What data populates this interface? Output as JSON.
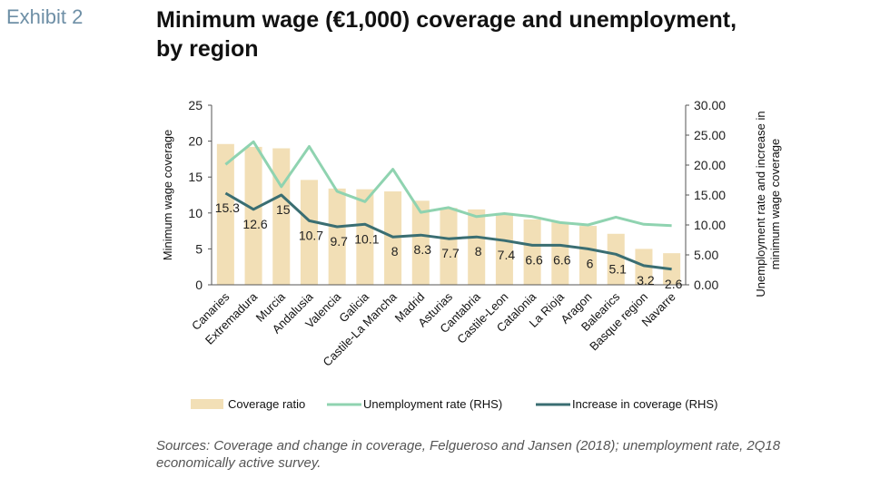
{
  "header": {
    "exhibit": "Exhibit 2",
    "title_line1": "Minimum wage (€1,000) coverage and unemployment,",
    "title_line2": "by region"
  },
  "source": {
    "line1": "Sources: Coverage and change in coverage, Felgueroso and Jansen (2018); unemployment rate, 2Q18",
    "line2": "economically active survey."
  },
  "chart_data": {
    "type": "bar",
    "categories": [
      "Canaries",
      "Extremadura",
      "Murcia",
      "Andalusia",
      "Valencia",
      "Galicia",
      "Castile-La Mancha",
      "Madrid",
      "Asturias",
      "Cantabria",
      "Castile-Leon",
      "Catalonia",
      "La Rioja",
      "Aragon",
      "Balearics",
      "Basque region",
      "Navarre"
    ],
    "ylabel": "Minimum wage coverage",
    "y2label_line1": "Unemployment rate and increase in",
    "y2label_line2": "minimum wage coverage",
    "ylim": [
      0,
      25
    ],
    "y2lim": [
      0,
      30
    ],
    "yticks": [
      "0",
      "5",
      "10",
      "15",
      "20",
      "25"
    ],
    "y2ticks": [
      "0.00",
      "5.00",
      "10.00",
      "15.00",
      "20.00",
      "25.00",
      "30.00"
    ],
    "series": [
      {
        "name": "Coverage ratio",
        "kind": "bar",
        "axis": "left",
        "color": "#f2dfb6",
        "values": [
          19.6,
          19.2,
          19.0,
          14.6,
          13.4,
          13.3,
          13.0,
          11.7,
          10.7,
          10.5,
          10.0,
          9.1,
          8.7,
          8.2,
          7.1,
          5.0,
          4.4
        ]
      },
      {
        "name": "Unemployment rate (RHS)",
        "kind": "line",
        "axis": "right",
        "color": "#8fd3b0",
        "values": [
          20.1,
          23.9,
          16.4,
          23.1,
          15.6,
          13.9,
          19.3,
          12.1,
          12.9,
          11.4,
          11.9,
          11.4,
          10.4,
          10.0,
          11.3,
          10.1,
          9.9
        ]
      },
      {
        "name": "Increase in coverage (RHS)",
        "kind": "line",
        "axis": "right",
        "color": "#3a6e72",
        "values": [
          15.3,
          12.6,
          15,
          10.7,
          9.7,
          10.1,
          8,
          8.3,
          7.7,
          8,
          7.4,
          6.6,
          6.6,
          6,
          5.1,
          3.2,
          2.6
        ],
        "labels": [
          "15.3",
          "12.6",
          "15",
          "10.7",
          "9.7",
          "10.1",
          "8",
          "8.3",
          "7.7",
          "8",
          "7.4",
          "6.6",
          "6.6",
          "6",
          "5.1",
          "3.2",
          "2.6"
        ]
      }
    ],
    "legend_position": "bottom",
    "grid": false
  }
}
